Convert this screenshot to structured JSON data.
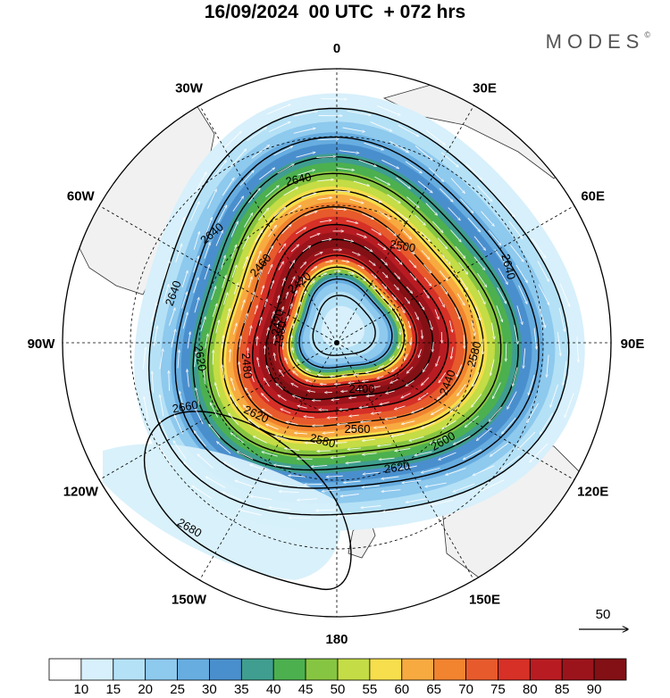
{
  "title": "16/09/2024  00 UTC  + 072 hrs",
  "brand": "MODES",
  "brand_mark": "©",
  "longitude_labels": [
    {
      "text": "0",
      "angle_deg": 0
    },
    {
      "text": "30E",
      "angle_deg": 30
    },
    {
      "text": "60E",
      "angle_deg": 60
    },
    {
      "text": "90E",
      "angle_deg": 90
    },
    {
      "text": "120E",
      "angle_deg": 120
    },
    {
      "text": "150E",
      "angle_deg": 150
    },
    {
      "text": "180",
      "angle_deg": 180
    },
    {
      "text": "150W",
      "angle_deg": 210
    },
    {
      "text": "120W",
      "angle_deg": 240
    },
    {
      "text": "90W",
      "angle_deg": 270
    },
    {
      "text": "60W",
      "angle_deg": 300
    },
    {
      "text": "30W",
      "angle_deg": 330
    }
  ],
  "contour_labels": [
    "2640",
    "2640",
    "2640",
    "2640",
    "2620",
    "2620",
    "2620",
    "2600",
    "2580",
    "2580",
    "2560",
    "2500",
    "2480",
    "2460",
    "2440",
    "2420",
    "2420",
    "2400",
    "2380",
    "2660",
    "2680"
  ],
  "vector_reference": {
    "label": "50"
  },
  "colorbar": {
    "ticks": [
      "10",
      "15",
      "20",
      "25",
      "30",
      "35",
      "40",
      "45",
      "50",
      "55",
      "60",
      "65",
      "70",
      "75",
      "80",
      "85",
      "90"
    ],
    "colors": [
      "#ffffff",
      "#d7f0fb",
      "#b5e1f6",
      "#8ec9ee",
      "#67ade0",
      "#4a8fcd",
      "#3f9e8f",
      "#4cb04f",
      "#86c541",
      "#c4dc45",
      "#f6de4c",
      "#f7aa40",
      "#f2832f",
      "#e75a2c",
      "#d63027",
      "#b81c22",
      "#9b141b",
      "#821014"
    ]
  }
}
